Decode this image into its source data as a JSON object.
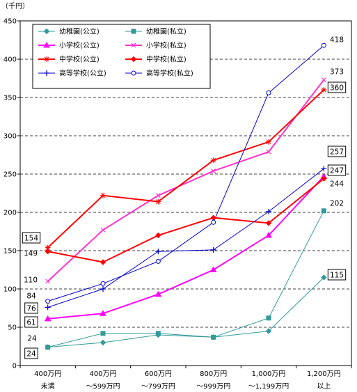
{
  "chart_data": {
    "type": "line",
    "ylabel": "（千円）",
    "ylim": [
      0,
      450
    ],
    "yticks": [
      0,
      50,
      100,
      150,
      200,
      250,
      300,
      350,
      400,
      450
    ],
    "grid": "horizontal dashed",
    "legend_position": "top-left",
    "categories": [
      {
        "top": "400万円",
        "bottom": "未満"
      },
      {
        "top": "400万円",
        "bottom": "～599万円"
      },
      {
        "top": "600万円",
        "bottom": "～799万円"
      },
      {
        "top": "800万円",
        "bottom": "～999万円"
      },
      {
        "top": "1,000万円",
        "bottom": "～1,199万円"
      },
      {
        "top": "1,200万円",
        "bottom": "以上"
      }
    ],
    "series": [
      {
        "name": "幼稚園(公立)",
        "color": "#339999",
        "marker": "diamond",
        "values": [
          24,
          30,
          40,
          37,
          45,
          115
        ]
      },
      {
        "name": "幼稚園(私立)",
        "color": "#339999",
        "marker": "square",
        "values": [
          24,
          42,
          42,
          37,
          62,
          202
        ]
      },
      {
        "name": "小学校(公立)",
        "color": "#ff00ff",
        "marker": "triangle",
        "values": [
          61,
          68,
          93,
          125,
          170,
          247
        ]
      },
      {
        "name": "小学校(私立)",
        "color": "#ff33cc",
        "marker": "x",
        "values": [
          110,
          177,
          222,
          254,
          279,
          373
        ]
      },
      {
        "name": "中学校(公立)",
        "color": "#ff0000",
        "marker": "star",
        "values": [
          154,
          222,
          214,
          268,
          292,
          360
        ]
      },
      {
        "name": "中学校(私立)",
        "color": "#ff0000",
        "marker": "diamond",
        "values": [
          149,
          135,
          170,
          193,
          186,
          244
        ]
      },
      {
        "name": "高等学校(公立)",
        "color": "#0000cc",
        "marker": "plus",
        "values": [
          76,
          100,
          149,
          151,
          201,
          257
        ]
      },
      {
        "name": "高等学校(私立)",
        "color": "#0000cc",
        "marker": "circle",
        "values": [
          84,
          107,
          136,
          187,
          356,
          418
        ]
      }
    ],
    "data_labels": [
      {
        "text": "154",
        "boxed": true
      },
      {
        "text": "149",
        "boxed": false
      },
      {
        "text": "110",
        "boxed": false
      },
      {
        "text": "84",
        "boxed": false
      },
      {
        "text": "76",
        "boxed": true
      },
      {
        "text": "61",
        "boxed": true
      },
      {
        "text": "24",
        "boxed": false
      },
      {
        "text": "24",
        "boxed": true
      },
      {
        "text": "418",
        "boxed": false
      },
      {
        "text": "373",
        "boxed": false
      },
      {
        "text": "360",
        "boxed": true
      },
      {
        "text": "257",
        "boxed": true
      },
      {
        "text": "247",
        "boxed": true
      },
      {
        "text": "244",
        "boxed": false
      },
      {
        "text": "202",
        "boxed": false
      },
      {
        "text": "115",
        "boxed": true
      }
    ]
  }
}
